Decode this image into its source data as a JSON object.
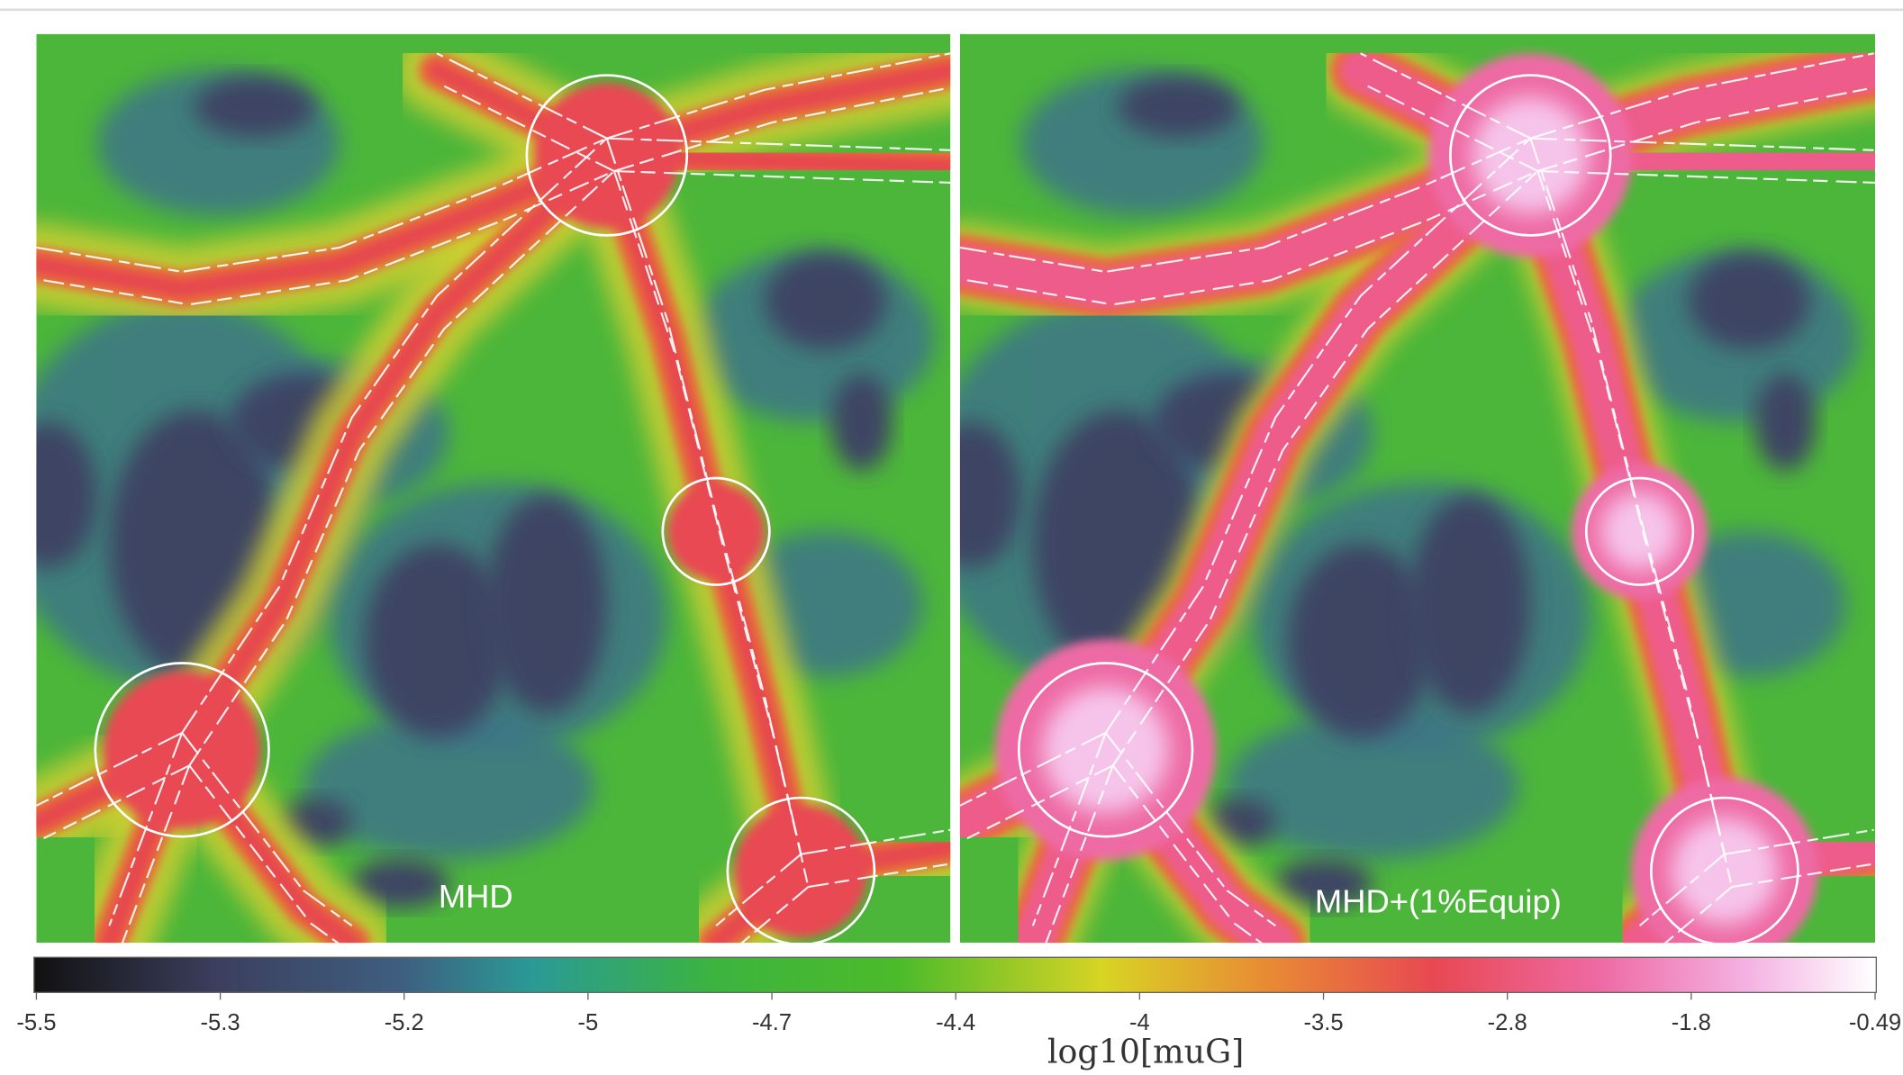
{
  "panels": [
    {
      "label": "MHD"
    },
    {
      "label": "MHD+(1%Equip)"
    }
  ],
  "colorbar": {
    "label": "log10[muG]",
    "ticks": [
      -5.5,
      -5.3,
      -5.2,
      -5,
      -4.7,
      -4.4,
      -4,
      -3.5,
      -2.8,
      -1.8,
      -0.49
    ]
  }
}
